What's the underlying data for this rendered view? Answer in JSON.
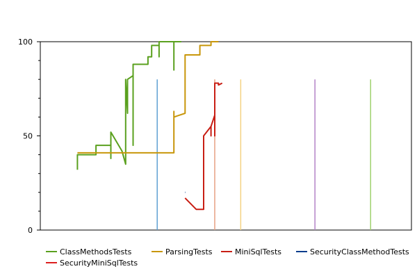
{
  "chart_data": {
    "type": "line",
    "title": "",
    "xlabel": "",
    "ylabel": "",
    "ylim": [
      0,
      100
    ],
    "yticks": [
      0,
      50,
      100
    ],
    "grid": false,
    "legend_position": "bottom",
    "series": [
      {
        "name": "ClassMethodsTests",
        "color": "#5aa01e",
        "points": [
          [
            0.1,
            32
          ],
          [
            0.1,
            40
          ],
          [
            0.15,
            40
          ],
          [
            0.15,
            45
          ],
          [
            0.19,
            45
          ],
          [
            0.19,
            38
          ],
          [
            0.19,
            52
          ],
          [
            0.22,
            42
          ],
          [
            0.23,
            35
          ],
          [
            0.23,
            60
          ],
          [
            0.23,
            80
          ],
          [
            0.235,
            62
          ],
          [
            0.235,
            80
          ],
          [
            0.25,
            82
          ],
          [
            0.25,
            45
          ],
          [
            0.25,
            88
          ],
          [
            0.29,
            88
          ],
          [
            0.29,
            92
          ],
          [
            0.3,
            92
          ],
          [
            0.3,
            98
          ],
          [
            0.32,
            98
          ],
          [
            0.32,
            92
          ],
          [
            0.32,
            100
          ],
          [
            0.36,
            100
          ],
          [
            0.36,
            85
          ],
          [
            0.36,
            100
          ],
          [
            0.38,
            100
          ]
        ]
      },
      {
        "name": "ParsingTests",
        "color": "#c8960a",
        "points": [
          [
            0.1,
            41
          ],
          [
            0.36,
            41
          ],
          [
            0.36,
            63
          ],
          [
            0.36,
            60
          ],
          [
            0.39,
            62
          ],
          [
            0.39,
            93
          ],
          [
            0.43,
            93
          ],
          [
            0.43,
            98
          ],
          [
            0.46,
            98
          ],
          [
            0.46,
            100
          ],
          [
            0.48,
            100
          ]
        ]
      },
      {
        "name": "MiniSqlTests",
        "color": "#c81e14",
        "points": [
          [
            0.39,
            17
          ],
          [
            0.42,
            11
          ],
          [
            0.44,
            11
          ],
          [
            0.44,
            50
          ],
          [
            0.46,
            55
          ],
          [
            0.46,
            50
          ],
          [
            0.46,
            55
          ],
          [
            0.47,
            61
          ],
          [
            0.47,
            50
          ],
          [
            0.47,
            78
          ],
          [
            0.48,
            78
          ],
          [
            0.48,
            77
          ],
          [
            0.49,
            78
          ]
        ]
      },
      {
        "name": "SecurityClassMethodTests",
        "color": "#003c8c",
        "points": [
          [
            0.39,
            20
          ],
          [
            0.391,
            20
          ]
        ]
      }
    ],
    "vertical_markers": [
      {
        "x": 0.315,
        "value": 80,
        "color": "#5fa0d2"
      },
      {
        "x": 0.47,
        "value": 80,
        "color": "#e6a082"
      },
      {
        "x": 0.54,
        "value": 80,
        "color": "#f5d282"
      },
      {
        "x": 0.74,
        "value": 80,
        "color": "#b482c8"
      },
      {
        "x": 0.89,
        "value": 80,
        "color": "#a0d26e"
      }
    ],
    "legend": [
      {
        "label": "ClassMethodsTests",
        "color": "#5aa01e"
      },
      {
        "label": "ParsingTests",
        "color": "#c8960a"
      },
      {
        "label": "MiniSqlTests",
        "color": "#c81e14"
      },
      {
        "label": "SecurityClassMethodTests",
        "color": "#003c8c"
      },
      {
        "label": "SecurityMiniSqlTests",
        "color": "#dc1e1e"
      }
    ]
  }
}
